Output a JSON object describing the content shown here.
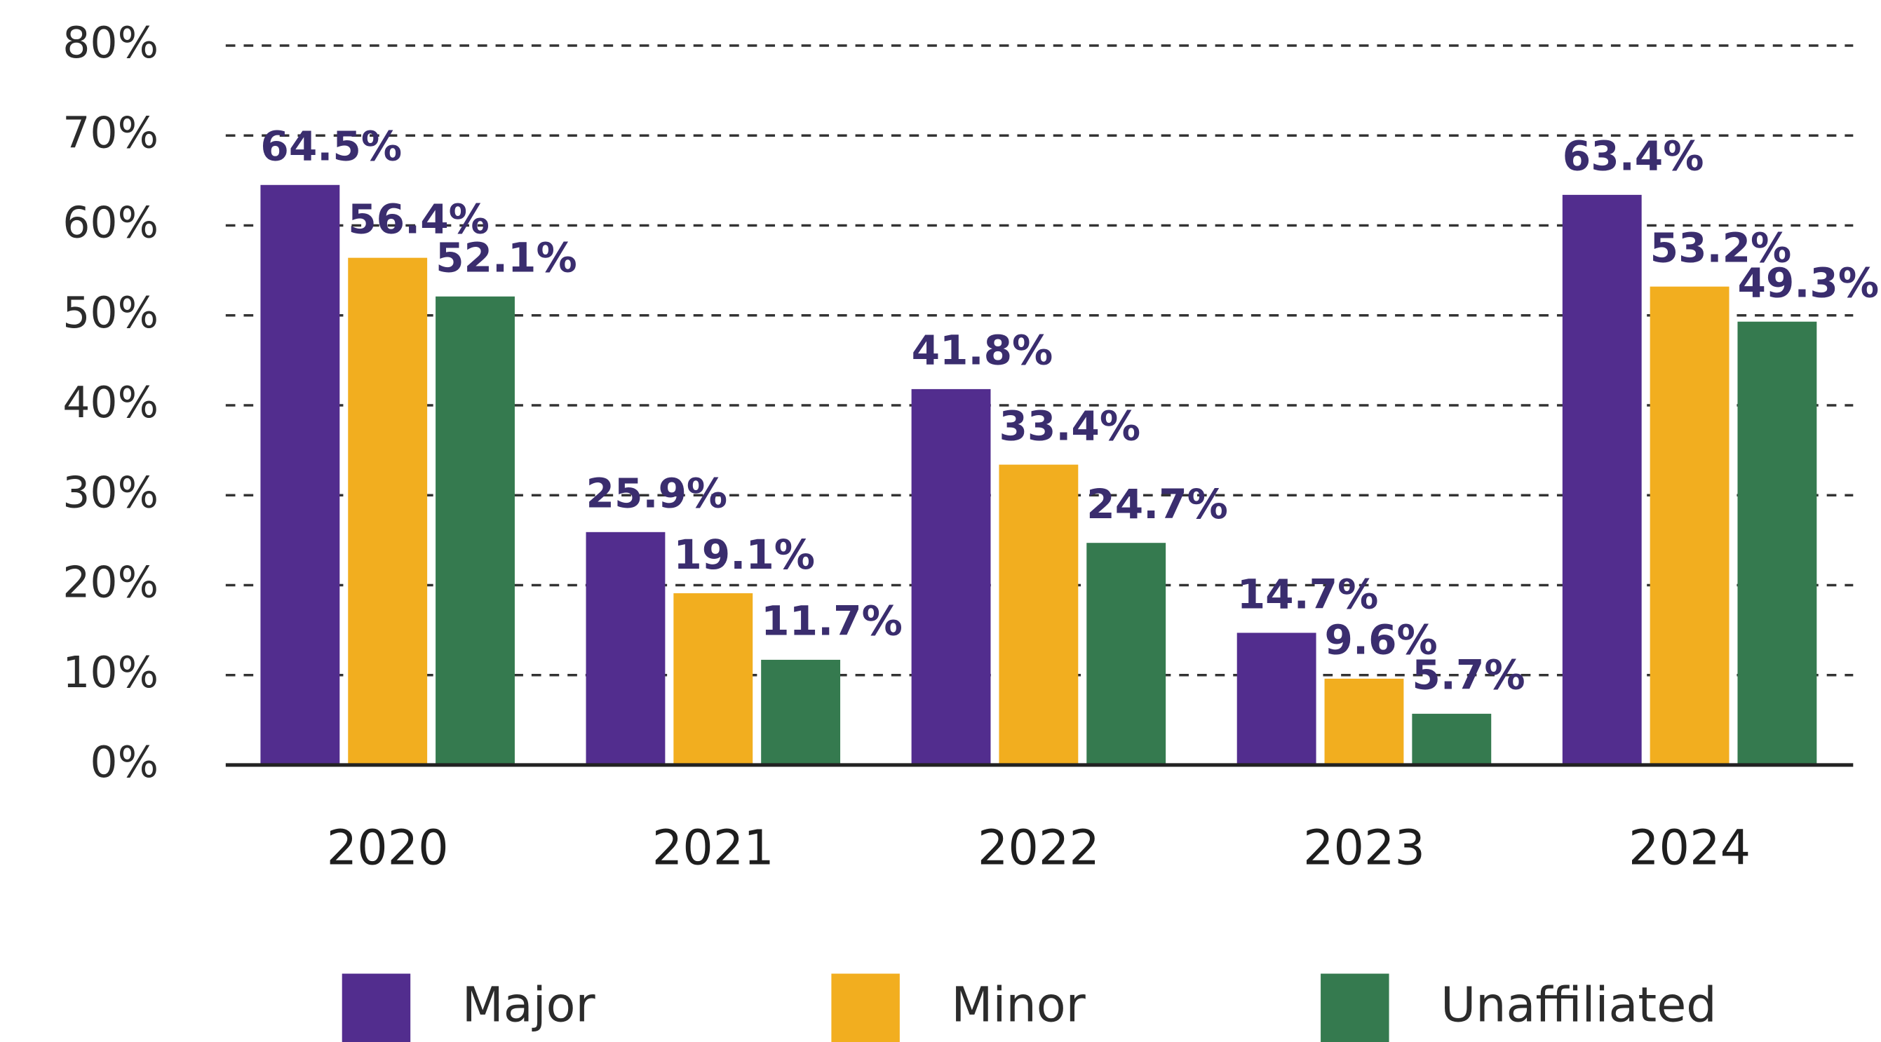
{
  "chart_data": {
    "type": "bar",
    "categories": [
      "2020",
      "2021",
      "2022",
      "2023",
      "2024"
    ],
    "series": [
      {
        "name": "Major",
        "color": "#522d8e",
        "values": [
          64.5,
          25.9,
          41.8,
          14.7,
          63.4
        ],
        "value_labels": [
          "64.5%",
          "25.9%",
          "41.8%",
          "14.7%",
          "63.4%"
        ]
      },
      {
        "name": "Minor",
        "color": "#f2ae1f",
        "values": [
          56.4,
          19.1,
          33.4,
          9.6,
          53.2
        ],
        "value_labels": [
          "56.4%",
          "19.1%",
          "33.4%",
          "9.6%",
          "53.2%"
        ]
      },
      {
        "name": "Unaffiliated",
        "color": "#357a4f",
        "values": [
          52.1,
          11.7,
          24.7,
          5.7,
          49.3
        ],
        "value_labels": [
          "52.1%",
          "11.7%",
          "24.7%",
          "5.7%",
          "49.3%"
        ]
      }
    ],
    "ylim": [
      0,
      80
    ],
    "yticks": [
      {
        "value": 0,
        "label": "0%"
      },
      {
        "value": 10,
        "label": "10%"
      },
      {
        "value": 20,
        "label": "20%"
      },
      {
        "value": 30,
        "label": "30%"
      },
      {
        "value": 40,
        "label": "40%"
      },
      {
        "value": 50,
        "label": "50%"
      },
      {
        "value": 60,
        "label": "60%"
      },
      {
        "value": 70,
        "label": "70%"
      },
      {
        "value": 80,
        "label": "80%"
      }
    ],
    "grid": true,
    "legend": "bottom"
  }
}
